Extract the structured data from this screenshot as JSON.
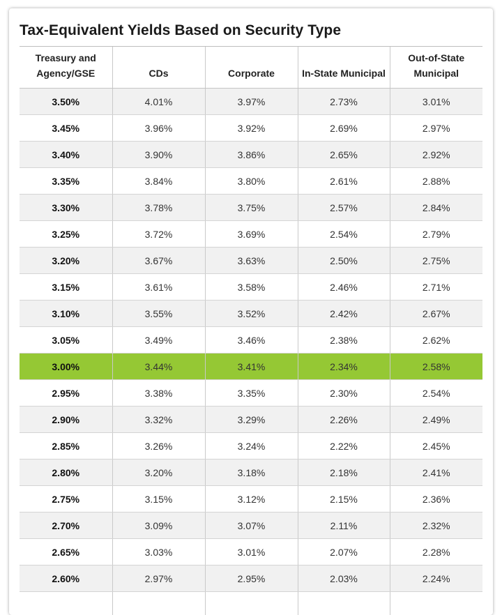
{
  "title": "Tax-Equivalent Yields Based on Security Type",
  "colors": {
    "highlight": "#95c834",
    "stripe": "#f1f1f1"
  },
  "headers": [
    "Treasury and Agency/GSE",
    "CDs",
    "Corporate",
    "In-State Municipal",
    "Out-of-State Municipal"
  ],
  "highlighted_row_index": 10,
  "rows": [
    [
      "3.50%",
      "4.01%",
      "3.97%",
      "2.73%",
      "3.01%"
    ],
    [
      "3.45%",
      "3.96%",
      "3.92%",
      "2.69%",
      "2.97%"
    ],
    [
      "3.40%",
      "3.90%",
      "3.86%",
      "2.65%",
      "2.92%"
    ],
    [
      "3.35%",
      "3.84%",
      "3.80%",
      "2.61%",
      "2.88%"
    ],
    [
      "3.30%",
      "3.78%",
      "3.75%",
      "2.57%",
      "2.84%"
    ],
    [
      "3.25%",
      "3.72%",
      "3.69%",
      "2.54%",
      "2.79%"
    ],
    [
      "3.20%",
      "3.67%",
      "3.63%",
      "2.50%",
      "2.75%"
    ],
    [
      "3.15%",
      "3.61%",
      "3.58%",
      "2.46%",
      "2.71%"
    ],
    [
      "3.10%",
      "3.55%",
      "3.52%",
      "2.42%",
      "2.67%"
    ],
    [
      "3.05%",
      "3.49%",
      "3.46%",
      "2.38%",
      "2.62%"
    ],
    [
      "3.00%",
      "3.44%",
      "3.41%",
      "2.34%",
      "2.58%"
    ],
    [
      "2.95%",
      "3.38%",
      "3.35%",
      "2.30%",
      "2.54%"
    ],
    [
      "2.90%",
      "3.32%",
      "3.29%",
      "2.26%",
      "2.49%"
    ],
    [
      "2.85%",
      "3.26%",
      "3.24%",
      "2.22%",
      "2.45%"
    ],
    [
      "2.80%",
      "3.20%",
      "3.18%",
      "2.18%",
      "2.41%"
    ],
    [
      "2.75%",
      "3.15%",
      "3.12%",
      "2.15%",
      "2.36%"
    ],
    [
      "2.70%",
      "3.09%",
      "3.07%",
      "2.11%",
      "2.32%"
    ],
    [
      "2.65%",
      "3.03%",
      "3.01%",
      "2.07%",
      "2.28%"
    ],
    [
      "2.60%",
      "2.97%",
      "2.95%",
      "2.03%",
      "2.24%"
    ],
    [
      "",
      "",
      "",
      "",
      ""
    ]
  ]
}
